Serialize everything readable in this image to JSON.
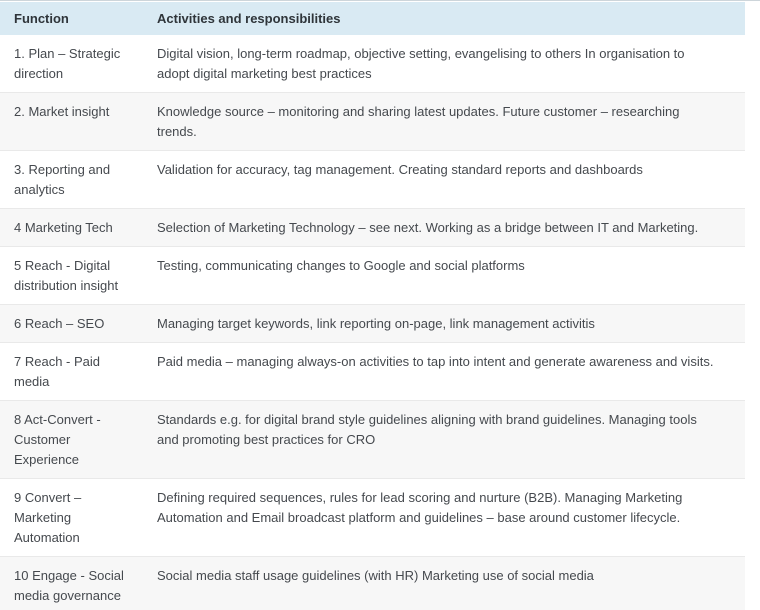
{
  "table": {
    "columns": {
      "function_label": "Function",
      "activities_label": "Activities and responsibilities"
    },
    "rows": [
      {
        "function": "1. Plan – Strategic direction",
        "activities": "Digital vision, long-term roadmap, objective setting, evangelising to others In organisation to adopt digital marketing best practices"
      },
      {
        "function": "2. Market insight",
        "activities": "Knowledge source – monitoring and sharing latest updates. Future customer – researching trends."
      },
      {
        "function": "3. Reporting and analytics",
        "activities": "Validation for accuracy, tag management. Creating standard reports and dashboards"
      },
      {
        "function": "4 Marketing Tech",
        "activities": "Selection of Marketing Technology – see next. Working as a bridge between IT and Marketing."
      },
      {
        "function": "5 Reach - Digital distribution insight",
        "activities": "Testing, communicating changes to Google and social platforms"
      },
      {
        "function": "6 Reach – SEO",
        "activities": "Managing target keywords, link reporting on-page, link management activitis"
      },
      {
        "function": "7 Reach - Paid media",
        "activities": "Paid media – managing always-on activities to tap into intent and generate awareness and visits."
      },
      {
        "function": "8 Act-Convert - Customer Experience",
        "activities": "Standards e.g. for digital brand style guidelines aligning with brand guidelines. Managing tools and promoting best practices for CRO"
      },
      {
        "function": "9 Convert – Marketing Automation",
        "activities": "Defining required sequences, rules for lead scoring and nurture (B2B). Managing Marketing Automation and Email broadcast platform and guidelines – base around customer lifecycle."
      },
      {
        "function": "10 Engage - Social media governance",
        "activities": "Social media staff usage guidelines (with HR) Marketing use of social media"
      }
    ],
    "colors": {
      "header_bg": "#d9eaf3",
      "alt_row_bg": "#f7f7f7",
      "row_border": "#e9e9e9",
      "top_rule": "#cdd5da",
      "header_text": "#2f353a",
      "body_text": "#45494e"
    }
  }
}
